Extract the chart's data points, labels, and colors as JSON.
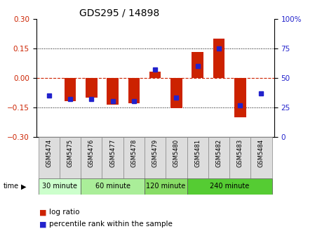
{
  "title": "GDS295 / 14898",
  "samples": [
    "GSM5474",
    "GSM5475",
    "GSM5476",
    "GSM5477",
    "GSM5478",
    "GSM5479",
    "GSM5480",
    "GSM5481",
    "GSM5482",
    "GSM5483",
    "GSM5484"
  ],
  "log_ratio": [
    0.0,
    -0.12,
    -0.1,
    -0.135,
    -0.13,
    0.03,
    -0.155,
    0.13,
    0.2,
    -0.2,
    0.0
  ],
  "percentile": [
    35,
    32,
    32,
    30,
    30,
    57,
    33,
    60,
    75,
    27,
    37
  ],
  "groups": [
    {
      "label": "30 minute",
      "start": 0,
      "end": 2,
      "color": "#ccffcc"
    },
    {
      "label": "60 minute",
      "start": 2,
      "end": 5,
      "color": "#aaee99"
    },
    {
      "label": "120 minute",
      "start": 5,
      "end": 7,
      "color": "#88dd66"
    },
    {
      "label": "240 minute",
      "start": 7,
      "end": 11,
      "color": "#55cc33"
    }
  ],
  "ylim": [
    -0.3,
    0.3
  ],
  "y2lim": [
    0,
    100
  ],
  "yticks": [
    -0.3,
    -0.15,
    0,
    0.15,
    0.3
  ],
  "y2ticks": [
    0,
    25,
    50,
    75,
    100
  ],
  "y2ticklabels": [
    "0",
    "25",
    "50",
    "75",
    "100%"
  ],
  "bar_width": 0.55,
  "log_ratio_color": "#cc2200",
  "percentile_color": "#2222cc",
  "zero_line_color": "#cc2200",
  "bg_color": "#ffffff",
  "plot_bg_color": "#ffffff",
  "legend_items": [
    "log ratio",
    "percentile rank within the sample"
  ]
}
